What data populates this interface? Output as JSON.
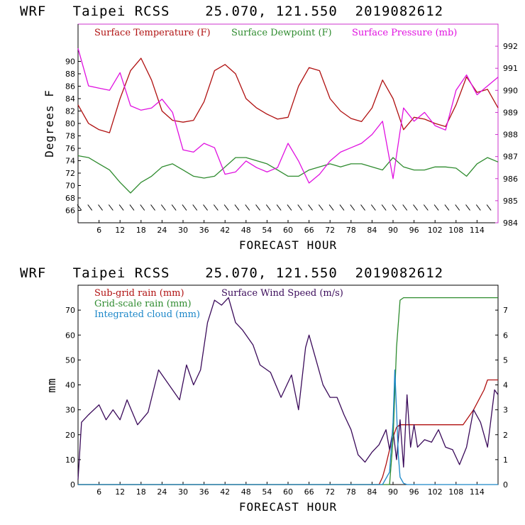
{
  "chart_data": [
    {
      "type": "line",
      "title": "WRF   Taipei RCSS    25.070, 121.550  2019082612",
      "xlabel": "FORECAST HOUR",
      "ylabel": "Degrees F",
      "xlim": [
        0,
        120
      ],
      "ylim": [
        64,
        96
      ],
      "y2lim": [
        984,
        993
      ],
      "xticks": [
        6,
        12,
        18,
        24,
        30,
        36,
        42,
        48,
        54,
        60,
        66,
        72,
        78,
        84,
        90,
        96,
        102,
        108,
        114
      ],
      "xtick_labels": [
        "6",
        "12",
        "18",
        "24",
        "30",
        "36",
        "42",
        "48",
        "54",
        "60",
        "66",
        "72",
        "78",
        "84",
        "90",
        "96",
        "102",
        "108",
        "114"
      ],
      "yticks": [
        66,
        68,
        70,
        72,
        74,
        76,
        78,
        80,
        82,
        84,
        86,
        88,
        90
      ],
      "ytick_labels": [
        "66",
        "68",
        "70",
        "72",
        "74",
        "76",
        "78",
        "80",
        "82",
        "84",
        "86",
        "88",
        "90"
      ],
      "y2ticks": [
        984,
        985,
        986,
        987,
        988,
        989,
        990,
        991,
        992
      ],
      "y2tick_labels": [
        "984",
        "985",
        "986",
        "987",
        "988",
        "989",
        "990",
        "991",
        "992"
      ],
      "x": [
        0,
        3,
        6,
        9,
        12,
        15,
        18,
        21,
        24,
        27,
        30,
        33,
        36,
        39,
        42,
        45,
        48,
        51,
        54,
        57,
        60,
        63,
        66,
        69,
        72,
        75,
        78,
        81,
        84,
        87,
        90,
        93,
        96,
        99,
        102,
        105,
        108,
        111,
        114,
        117,
        120
      ],
      "series": [
        {
          "name": "Surface Temperature (F)",
          "color": "#b01010",
          "axis": "left",
          "values": [
            83.0,
            80.0,
            79.0,
            78.5,
            84.0,
            88.5,
            90.5,
            87.0,
            82.0,
            80.5,
            80.2,
            80.5,
            83.5,
            88.5,
            89.5,
            88.0,
            84.0,
            82.5,
            81.5,
            80.7,
            81.0,
            86.0,
            89.0,
            88.5,
            84.0,
            82.0,
            80.8,
            80.3,
            82.5,
            87.0,
            84.0,
            79.0,
            81.0,
            80.7,
            80.0,
            79.5,
            83.0,
            87.5,
            85.0,
            85.5,
            82.5
          ]
        },
        {
          "name": "Surface Dewpoint (F)",
          "color": "#2e8b2e",
          "axis": "left",
          "values": [
            74.8,
            74.5,
            73.5,
            72.5,
            70.5,
            68.8,
            70.5,
            71.5,
            73.0,
            73.5,
            72.5,
            71.5,
            71.2,
            71.5,
            73.0,
            74.5,
            74.5,
            74.0,
            73.5,
            72.5,
            71.5,
            71.5,
            72.5,
            73.0,
            73.5,
            73.0,
            73.5,
            73.5,
            73.0,
            72.5,
            74.5,
            73.0,
            72.5,
            72.5,
            73.0,
            73.0,
            72.8,
            71.5,
            73.5,
            74.5,
            73.8
          ]
        },
        {
          "name": "Surface Pressure (mb)",
          "color": "#e010e0",
          "axis": "right",
          "values": [
            991.9,
            990.2,
            990.1,
            990.0,
            990.8,
            989.3,
            989.1,
            989.2,
            989.6,
            989.0,
            987.3,
            987.2,
            987.6,
            987.4,
            986.2,
            986.3,
            986.8,
            986.5,
            986.3,
            986.5,
            987.6,
            986.8,
            985.8,
            986.2,
            986.8,
            987.2,
            987.4,
            987.6,
            988.0,
            988.6,
            986.0,
            989.2,
            988.6,
            989.0,
            988.4,
            988.2,
            990.0,
            990.7,
            989.8,
            990.2,
            990.6
          ]
        }
      ],
      "wind_barbs_at_y": 66
    },
    {
      "type": "line",
      "title": "WRF   Taipei RCSS    25.070, 121.550  2019082612",
      "xlabel": "FORECAST HOUR",
      "ylabel": "mm",
      "xlim": [
        0,
        120
      ],
      "ylim": [
        0,
        80
      ],
      "y2lim": [
        0,
        8
      ],
      "xticks": [
        6,
        12,
        18,
        24,
        30,
        36,
        42,
        48,
        54,
        60,
        66,
        72,
        78,
        84,
        90,
        96,
        102,
        108,
        114
      ],
      "xtick_labels": [
        "6",
        "12",
        "18",
        "24",
        "30",
        "36",
        "42",
        "48",
        "54",
        "60",
        "66",
        "72",
        "78",
        "84",
        "90",
        "96",
        "102",
        "108",
        "114"
      ],
      "yticks": [
        0,
        10,
        20,
        30,
        40,
        50,
        60,
        70
      ],
      "ytick_labels": [
        "0",
        "10",
        "20",
        "30",
        "40",
        "50",
        "60",
        "70"
      ],
      "y2ticks": [
        0,
        1,
        2,
        3,
        4,
        5,
        6,
        7
      ],
      "y2tick_labels": [
        "0",
        "1",
        "2",
        "3",
        "4",
        "5",
        "6",
        "7"
      ],
      "series": [
        {
          "name": "Sub-grid rain (mm)",
          "color": "#b01010",
          "axis": "left",
          "x": [
            0,
            86,
            87,
            88,
            89,
            90,
            91,
            92,
            110,
            113,
            116,
            117,
            120
          ],
          "values": [
            0,
            0,
            3,
            8,
            14,
            19,
            23,
            24,
            24,
            30,
            38,
            42,
            42
          ]
        },
        {
          "name": "Surface Wind Speed (m/s)",
          "color": "#3a0a5a",
          "axis": "right",
          "x": [
            0,
            1,
            3,
            6,
            8,
            10,
            12,
            14,
            17,
            20,
            23,
            26,
            29,
            31,
            33,
            35,
            37,
            39,
            41,
            43,
            45,
            47,
            50,
            52,
            55,
            58,
            61,
            63,
            65,
            66,
            68,
            70,
            72,
            74,
            76,
            78,
            80,
            82,
            84,
            86,
            88,
            89,
            90,
            91,
            92,
            93,
            94,
            95,
            96,
            97,
            99,
            101,
            103,
            105,
            107,
            109,
            111,
            113,
            115,
            117,
            119,
            120
          ],
          "values": [
            0.2,
            2.5,
            2.8,
            3.2,
            2.6,
            3.0,
            2.6,
            3.4,
            2.4,
            2.9,
            4.6,
            4.0,
            3.4,
            4.8,
            4.0,
            4.6,
            6.5,
            7.4,
            7.2,
            7.5,
            6.5,
            6.2,
            5.6,
            4.8,
            4.5,
            3.5,
            4.4,
            3.0,
            5.5,
            6.0,
            5.0,
            4.0,
            3.5,
            3.5,
            2.8,
            2.2,
            1.2,
            0.9,
            1.3,
            1.6,
            2.2,
            1.4,
            2.2,
            1.0,
            2.6,
            0.7,
            3.6,
            1.5,
            2.4,
            1.5,
            1.8,
            1.7,
            2.2,
            1.5,
            1.4,
            0.8,
            1.5,
            3.0,
            2.5,
            1.5,
            3.8,
            3.6
          ]
        },
        {
          "name": "Grid-scale rain (mm)",
          "color": "#2e8b2e",
          "axis": "left",
          "x": [
            0,
            89,
            90,
            91,
            92,
            93,
            120
          ],
          "values": [
            0,
            0,
            18,
            55,
            74,
            75,
            75
          ]
        },
        {
          "name": "Integrated cloud (mm)",
          "color": "#1a86c8",
          "axis": "left",
          "x": [
            0,
            87,
            89,
            90,
            90.5,
            91,
            91.5,
            92,
            93,
            94,
            120
          ],
          "values": [
            0,
            0,
            5,
            25,
            46,
            30,
            12,
            3,
            0.5,
            0,
            0
          ]
        }
      ]
    }
  ]
}
